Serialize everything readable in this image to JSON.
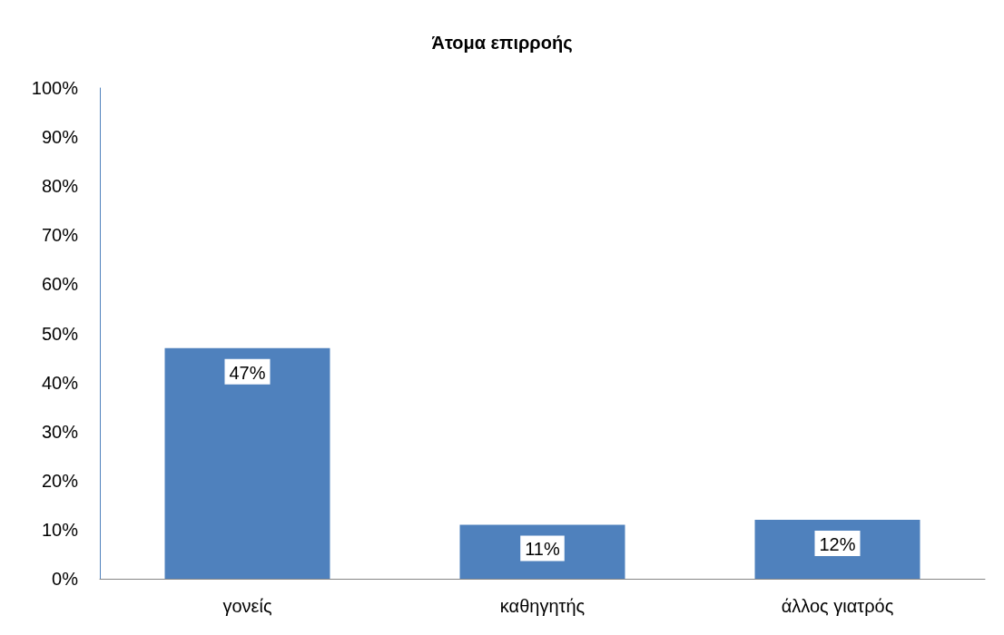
{
  "chart_data": {
    "type": "bar",
    "title": "Άτομα επιρροής",
    "categories": [
      "γονείς",
      "καθηγητής",
      "άλλος γιατρός"
    ],
    "values": [
      47,
      11,
      12
    ],
    "color": "#4f81bd",
    "value_labels": [
      "47%",
      "11%",
      "12%"
    ],
    "ylim": [
      0,
      100
    ],
    "yticks": [
      {
        "value": 0,
        "label": "0%"
      },
      {
        "value": 10,
        "label": "10%"
      },
      {
        "value": 20,
        "label": "20%"
      },
      {
        "value": 30,
        "label": "30%"
      },
      {
        "value": 40,
        "label": "40%"
      },
      {
        "value": 50,
        "label": "50%"
      },
      {
        "value": 60,
        "label": "60%"
      },
      {
        "value": 70,
        "label": "70%"
      },
      {
        "value": 80,
        "label": "80%"
      },
      {
        "value": 90,
        "label": "90%"
      },
      {
        "value": 100,
        "label": "100%"
      }
    ],
    "grid": false
  }
}
